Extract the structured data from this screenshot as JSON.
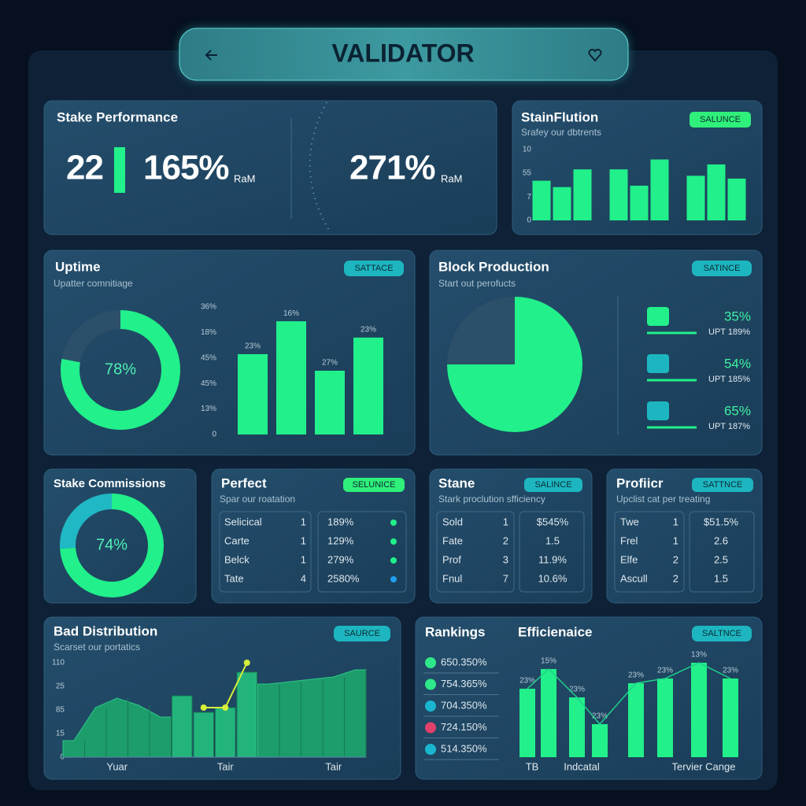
{
  "header": {
    "title": "VALIDATOR"
  },
  "stake_performance": {
    "title": "Stake Performance",
    "stats": [
      {
        "value": "22"
      },
      {
        "value": "165%",
        "unit": "RaM"
      },
      {
        "value": "271%",
        "unit": "RaM"
      }
    ]
  },
  "stainflution": {
    "title": "StainFlution",
    "badge": "SALUNCE",
    "subtitle": "Srafey our dbtrents",
    "chart": {
      "type": "bar",
      "color": "#22f08a",
      "categories": [
        null,
        null,
        null,
        null,
        null,
        null,
        null,
        null,
        null
      ],
      "values": [
        5.6,
        4.7,
        7.2,
        7.2,
        4.9,
        8.6,
        6.3,
        7.9,
        5.9
      ],
      "ylim": [
        0,
        10
      ],
      "yticks": [
        10,
        {
          "value": 6.7,
          "label": "55"
        },
        {
          "value": 3.3,
          "label": "7"
        },
        0
      ]
    }
  },
  "uptime": {
    "title": "Uptime",
    "badge": "SATTACE",
    "subtitle": "Upatter comnitiage",
    "donut": {
      "type": "donut",
      "values": [
        78,
        22
      ],
      "colors": [
        "#22f08a",
        "#2c4f6a"
      ],
      "value_labels": [
        "78%",
        null
      ]
    },
    "chart": {
      "type": "bar",
      "color": "#22f08a",
      "categories": [
        null,
        null,
        null,
        null
      ],
      "values": [
        3.15,
        4.44,
        2.5,
        3.8
      ],
      "annotations": [
        "23%",
        "16%",
        "27%",
        "23%"
      ],
      "ylim": [
        0,
        5
      ],
      "yticks": [
        {
          "value": 5,
          "label": "36%"
        },
        {
          "value": 4,
          "label": "18%"
        },
        {
          "value": 3,
          "label": "45%"
        },
        {
          "value": 2,
          "label": "45%"
        },
        {
          "value": 1,
          "label": "13%"
        },
        0
      ]
    }
  },
  "block_production": {
    "title": "Block Production",
    "badge": "SATINCE",
    "subtitle": "Start out perofucts",
    "pie": {
      "type": "pie",
      "values": [
        75,
        25
      ],
      "colors": [
        "#22f08a",
        "#2c4f6a"
      ]
    },
    "items": [
      {
        "value": "35%",
        "detail": "UPT 189%"
      },
      {
        "value": "54%",
        "detail": "UPT 185%"
      },
      {
        "value": "65%",
        "detail": "UPT 187%"
      }
    ]
  },
  "stake_commissions": {
    "title": "Stake Commissions",
    "donut": {
      "type": "donut",
      "values": [
        74,
        26
      ],
      "colors": [
        "#22f08a",
        "#1fb8c4"
      ],
      "value_labels": [
        "74%",
        null
      ]
    }
  },
  "perfect": {
    "title": "Perfect",
    "badge": "SELUNICE",
    "subtitle": "Spar our roatation",
    "rows": [
      [
        "Selicical",
        "1",
        "189%"
      ],
      [
        "Carte",
        "1",
        "129%"
      ],
      [
        "Belck",
        "1",
        "279%"
      ],
      [
        "Tate",
        "4",
        "2580%"
      ]
    ],
    "dot_colors": [
      "#22f08a",
      "#22f08a",
      "#22f08a",
      "#1f9ef0"
    ]
  },
  "stane": {
    "title": "Stane",
    "badge": "SALINCE",
    "subtitle": "Stark proclution sfficiency",
    "rows": [
      [
        "Sold",
        "1",
        "$545%"
      ],
      [
        "Fate",
        "2",
        "1.5"
      ],
      [
        "Prof",
        "3",
        "11.9%"
      ],
      [
        "Fnul",
        "7",
        "10.6%"
      ]
    ]
  },
  "profiler": {
    "title": "Profiicr",
    "badge": "SATTNCE",
    "subtitle": "Upclist cat per treating",
    "rows": [
      [
        "Twe",
        "1",
        "$51.5%"
      ],
      [
        "Frel",
        "1",
        "2.6"
      ],
      [
        "Elfe",
        "2",
        "2.5"
      ],
      [
        "Ascull",
        "2",
        "1.5"
      ]
    ]
  },
  "bad_distribution": {
    "title": "Bad Distribution",
    "badge": "SAURCE",
    "subtitle": "Scarset our portatics",
    "chart": {
      "type": "combo",
      "ylim": [
        0,
        4
      ],
      "yticks": [
        {
          "value": 4,
          "label": "110"
        },
        {
          "value": 3,
          "label": "25"
        },
        {
          "value": 2,
          "label": "85"
        },
        {
          "value": 1,
          "label": "15"
        },
        0
      ],
      "categories": [
        null,
        null,
        "Yuar",
        null,
        null,
        null,
        null,
        "Tair",
        null,
        null,
        null,
        null,
        "Tair",
        null
      ],
      "series": [
        {
          "style": "area",
          "color": "#1d9c6c",
          "values": [
            0.7,
            2.1,
            2.5,
            2.2,
            1.7,
            null,
            null,
            null,
            null,
            3.1,
            3.2,
            3.3,
            3.4,
            3.7
          ]
        },
        {
          "style": "bar",
          "color": "#23b47c",
          "values": [
            null,
            null,
            null,
            null,
            null,
            2.6,
            1.9,
            2.1,
            3.6,
            null,
            null,
            null,
            null,
            null
          ]
        },
        {
          "style": "line",
          "color": "#d6f03a",
          "values": [
            null,
            null,
            null,
            null,
            null,
            null,
            2.1,
            2.1,
            4.0,
            null,
            null,
            null,
            null,
            null
          ]
        }
      ]
    }
  },
  "rankings": {
    "title": "Rankings",
    "items": [
      {
        "text": "650.350%",
        "color": "#2ee88a"
      },
      {
        "text": "754.365%",
        "color": "#2ee88a"
      },
      {
        "text": "704.350%",
        "color": "#1ab6d0"
      },
      {
        "text": "724.150%",
        "color": "#e0406a"
      },
      {
        "text": "514.350%",
        "color": "#1ab6d0"
      }
    ]
  },
  "efficiency": {
    "title": "Efficienaice",
    "badge": "SALTNCE",
    "chart": {
      "type": "bar",
      "color": "#22f08a",
      "line_color": "#1fd08a",
      "categories": [
        "TB",
        null,
        "Indcatal",
        null,
        null,
        null,
        "Tervier Cange",
        null
      ],
      "values": [
        87,
        112,
        76,
        42,
        94,
        100,
        120,
        100
      ],
      "annotations": [
        "23%",
        "15%",
        "23%",
        "23%",
        "23%",
        "23%",
        "13%",
        "23%"
      ]
    }
  }
}
